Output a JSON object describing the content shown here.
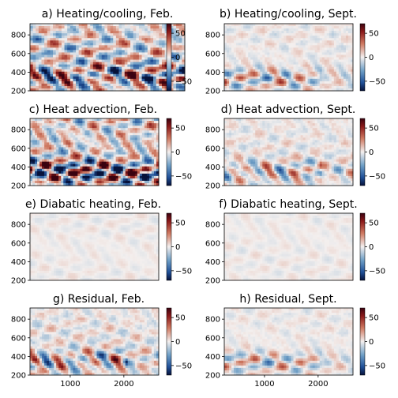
{
  "chart_data": [
    {
      "type": "heatmap",
      "title": "a) Heating/cooling, Feb.",
      "yticks": [
        200,
        400,
        600,
        800
      ],
      "xticks": [],
      "ylim": [
        200,
        920
      ],
      "xlim": [
        250,
        2650
      ],
      "colorbar": {
        "ticks": [
          50,
          0,
          -50
        ],
        "range": [
          -70,
          70
        ],
        "cmap": "diverging-blue-white-red"
      },
      "intensity": 1.0,
      "feature": "strong"
    },
    {
      "type": "heatmap",
      "title": "b) Heating/cooling, Sept.",
      "yticks": [
        200,
        400,
        600,
        800
      ],
      "xticks": [],
      "ylim": [
        200,
        920
      ],
      "xlim": [
        250,
        2650
      ],
      "colorbar": {
        "ticks": [
          50,
          0,
          -50
        ],
        "range": [
          -70,
          70
        ],
        "cmap": "diverging-blue-white-red"
      },
      "intensity": 0.45,
      "feature": "band"
    },
    {
      "type": "heatmap",
      "title": "c) Heat advection, Feb.",
      "yticks": [
        200,
        400,
        600,
        800
      ],
      "xticks": [],
      "ylim": [
        200,
        920
      ],
      "xlim": [
        250,
        2650
      ],
      "colorbar": {
        "ticks": [
          50,
          0,
          -50
        ],
        "range": [
          -70,
          70
        ],
        "cmap": "diverging-blue-white-red"
      },
      "intensity": 1.0,
      "feature": "strong"
    },
    {
      "type": "heatmap",
      "title": "d) Heat advection, Sept.",
      "yticks": [
        200,
        400,
        600,
        800
      ],
      "xticks": [],
      "ylim": [
        200,
        920
      ],
      "xlim": [
        250,
        2650
      ],
      "colorbar": {
        "ticks": [
          50,
          0,
          -50
        ],
        "range": [
          -70,
          70
        ],
        "cmap": "diverging-blue-white-red"
      },
      "intensity": 0.55,
      "feature": "band"
    },
    {
      "type": "heatmap",
      "title": "e) Diabatic heating, Feb.",
      "yticks": [
        200,
        400,
        600,
        800
      ],
      "xticks": [],
      "ylim": [
        200,
        920
      ],
      "xlim": [
        250,
        2650
      ],
      "colorbar": {
        "ticks": [
          50,
          0,
          -50
        ],
        "range": [
          -70,
          70
        ],
        "cmap": "diverging-blue-white-red"
      },
      "intensity": 0.12,
      "feature": "faint"
    },
    {
      "type": "heatmap",
      "title": "f) Diabatic heating, Sept.",
      "yticks": [
        200,
        400,
        600,
        800
      ],
      "xticks": [],
      "ylim": [
        200,
        920
      ],
      "xlim": [
        250,
        2650
      ],
      "colorbar": {
        "ticks": [
          50,
          0,
          -50
        ],
        "range": [
          -70,
          70
        ],
        "cmap": "diverging-blue-white-red"
      },
      "intensity": 0.12,
      "feature": "faint"
    },
    {
      "type": "heatmap",
      "title": "g) Residual, Feb.",
      "yticks": [
        200,
        400,
        600,
        800
      ],
      "xticks": [
        1000,
        2000
      ],
      "ylim": [
        200,
        920
      ],
      "xlim": [
        250,
        2650
      ],
      "colorbar": {
        "ticks": [
          50,
          0,
          -50
        ],
        "range": [
          -70,
          70
        ],
        "cmap": "diverging-blue-white-red"
      },
      "intensity": 0.7,
      "feature": "band"
    },
    {
      "type": "heatmap",
      "title": "h) Residual, Sept.",
      "yticks": [
        200,
        400,
        600,
        800
      ],
      "xticks": [
        1000,
        2000
      ],
      "ylim": [
        200,
        920
      ],
      "xlim": [
        250,
        2650
      ],
      "colorbar": {
        "ticks": [
          50,
          0,
          -50
        ],
        "range": [
          -70,
          70
        ],
        "cmap": "diverging-blue-white-red"
      },
      "intensity": 0.35,
      "feature": "band"
    }
  ]
}
